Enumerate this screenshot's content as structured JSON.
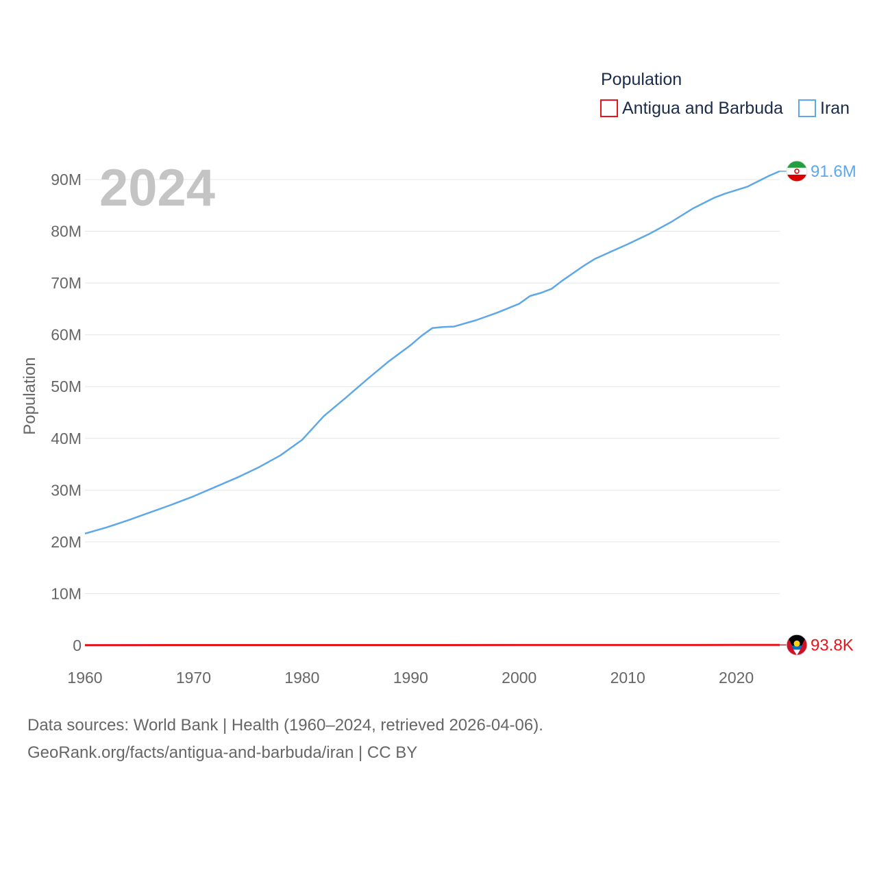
{
  "chart_data": {
    "type": "line",
    "title": "Population",
    "current_year": "2024",
    "ylabel": "Population",
    "xlabel": "",
    "xlim": [
      1960,
      2024
    ],
    "ylim": [
      0,
      90000000
    ],
    "x_ticks": [
      1960,
      1970,
      1980,
      1990,
      2000,
      2010,
      2020
    ],
    "y_ticks": [
      {
        "value": 0,
        "label": "0"
      },
      {
        "value": 10000000,
        "label": "10M"
      },
      {
        "value": 20000000,
        "label": "20M"
      },
      {
        "value": 30000000,
        "label": "30M"
      },
      {
        "value": 40000000,
        "label": "40M"
      },
      {
        "value": 50000000,
        "label": "50M"
      },
      {
        "value": 60000000,
        "label": "60M"
      },
      {
        "value": 70000000,
        "label": "70M"
      },
      {
        "value": 80000000,
        "label": "80M"
      },
      {
        "value": 90000000,
        "label": "90M"
      }
    ],
    "grid": true,
    "legend_position": "top-right",
    "series": [
      {
        "name": "Antigua and Barbuda",
        "color": "#e8141c",
        "end_label": "93.8K",
        "flag": "antigua-flag",
        "points": [
          [
            1960,
            55000
          ],
          [
            1970,
            66000
          ],
          [
            1980,
            69000
          ],
          [
            1990,
            62000
          ],
          [
            2000,
            76000
          ],
          [
            2010,
            85000
          ],
          [
            2020,
            92000
          ],
          [
            2024,
            93800
          ]
        ]
      },
      {
        "name": "Iran",
        "color": "#5ea7e8",
        "end_label": "91.6M",
        "flag": "iran-flag",
        "points": [
          [
            1960,
            21600000
          ],
          [
            1962,
            22800000
          ],
          [
            1964,
            24200000
          ],
          [
            1966,
            25700000
          ],
          [
            1968,
            27200000
          ],
          [
            1970,
            28800000
          ],
          [
            1972,
            30600000
          ],
          [
            1974,
            32400000
          ],
          [
            1976,
            34400000
          ],
          [
            1978,
            36700000
          ],
          [
            1980,
            39700000
          ],
          [
            1982,
            44300000
          ],
          [
            1984,
            47800000
          ],
          [
            1986,
            51400000
          ],
          [
            1988,
            54900000
          ],
          [
            1990,
            58000000
          ],
          [
            1991,
            59800000
          ],
          [
            1992,
            61300000
          ],
          [
            1993,
            61500000
          ],
          [
            1994,
            61600000
          ],
          [
            1996,
            62800000
          ],
          [
            1998,
            64300000
          ],
          [
            2000,
            66000000
          ],
          [
            2001,
            67500000
          ],
          [
            2002,
            68100000
          ],
          [
            2003,
            68900000
          ],
          [
            2004,
            70500000
          ],
          [
            2006,
            73400000
          ],
          [
            2007,
            74700000
          ],
          [
            2010,
            77500000
          ],
          [
            2012,
            79500000
          ],
          [
            2014,
            81800000
          ],
          [
            2016,
            84400000
          ],
          [
            2018,
            86500000
          ],
          [
            2019,
            87300000
          ],
          [
            2021,
            88600000
          ],
          [
            2023,
            90700000
          ],
          [
            2024,
            91600000
          ]
        ]
      }
    ]
  },
  "footer": {
    "sources": "Data sources: World Bank | Health (1960–2024, retrieved 2026-04-06).",
    "attribution": "GeoRank.org/facts/antigua-and-barbuda/iran | CC BY"
  }
}
